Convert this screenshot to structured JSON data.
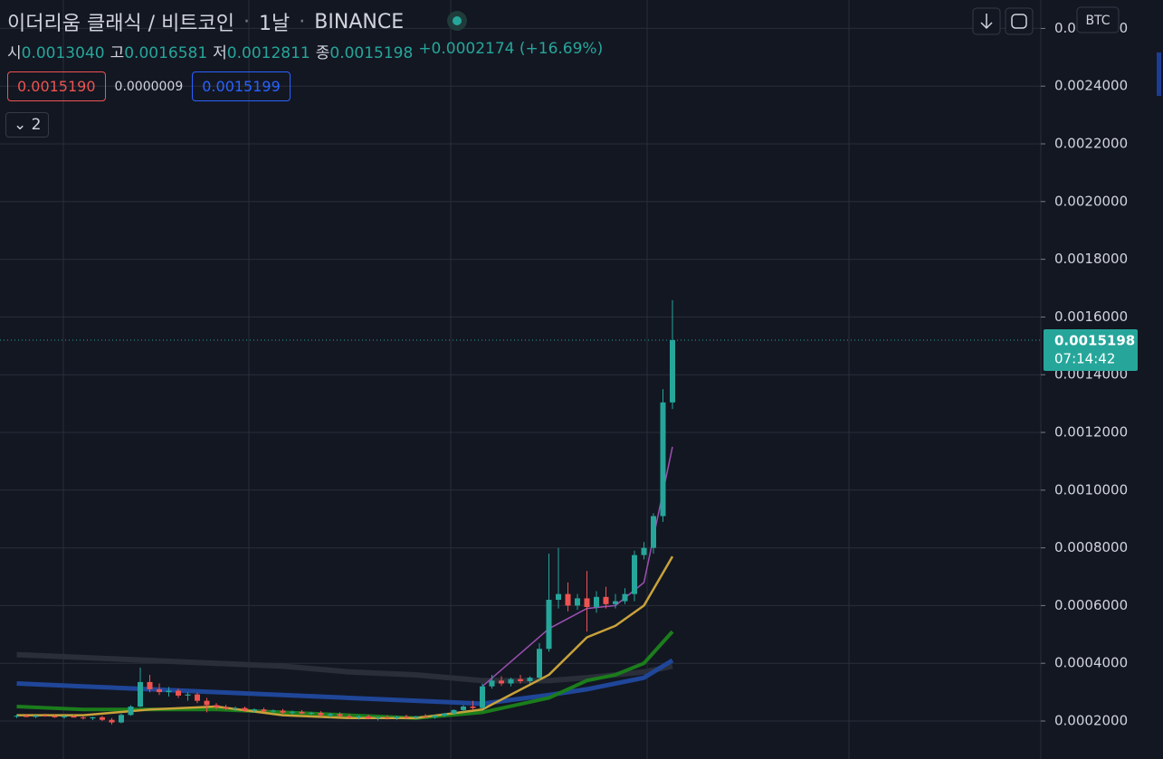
{
  "chart_data": {
    "type": "candlestick",
    "title": "이더리움 클래식 / 비트코인",
    "interval": "1날",
    "exchange": "BINANCE",
    "currency": "BTC",
    "ohlc_legend": [
      {
        "label": "시",
        "value": "0.0013040"
      },
      {
        "label": "고",
        "value": "0.0016581"
      },
      {
        "label": "저",
        "value": "0.0012811"
      },
      {
        "label": "종",
        "value": "0.0015198"
      }
    ],
    "change": "+0.0002174 (+16.69%)",
    "quote_boxes": [
      {
        "text": "0.0015190",
        "color": "#ef5350"
      },
      {
        "text": "0.0000009",
        "color": "#d1d4dc"
      },
      {
        "text": "0.0015199",
        "color": "#2962ff"
      }
    ],
    "collapsed_count": "2",
    "countdown": "07:14:42",
    "up_color": "#26a69a",
    "down_color": "#ef5350",
    "open": [
      0.000215,
      0.000218,
      0.000214,
      0.000219,
      0.000216,
      0.000213,
      0.000217,
      0.000212,
      0.000209,
      0.000213,
      0.000204,
      0.000195,
      0.000221,
      0.00025,
      0.000335,
      0.00031,
      0.0003,
      0.000305,
      0.000288,
      0.000292,
      0.00027,
      0.000255,
      0.000248,
      0.000242,
      0.000245,
      0.000236,
      0.00024,
      0.000233,
      0.000236,
      0.000229,
      0.000232,
      0.000226,
      0.000228,
      0.00022,
      0.000224,
      0.000217,
      0.000212,
      0.000216,
      0.000209,
      0.000213,
      0.00021,
      0.000215,
      0.000211,
      0.000216,
      0.000213,
      0.000219,
      0.000226,
      0.000238,
      0.00025,
      0.000245,
      0.00032,
      0.00034,
      0.00033,
      0.000345,
      0.000338,
      0.00035,
      0.00045,
      0.00062,
      0.00064,
      0.0006,
      0.000625,
      0.000595,
      0.00063,
      0.000605,
      0.000615,
      0.00064,
      0.000775,
      0.0008,
      0.00091,
      0.001304
    ],
    "high": [
      0.000222,
      0.000224,
      0.00022,
      0.000226,
      0.000221,
      0.000219,
      0.000223,
      0.000218,
      0.000215,
      0.000218,
      0.00021,
      0.000225,
      0.000255,
      0.000385,
      0.00036,
      0.00033,
      0.000318,
      0.000312,
      0.0003,
      0.000298,
      0.00028,
      0.000262,
      0.000256,
      0.00025,
      0.00025,
      0.000244,
      0.000246,
      0.00024,
      0.000242,
      0.000236,
      0.000238,
      0.000232,
      0.000234,
      0.000228,
      0.00023,
      0.000224,
      0.00022,
      0.000222,
      0.000216,
      0.00022,
      0.000218,
      0.000222,
      0.000218,
      0.000224,
      0.00022,
      0.000228,
      0.00024,
      0.000255,
      0.00027,
      0.00033,
      0.00036,
      0.000355,
      0.00035,
      0.00036,
      0.000355,
      0.00047,
      0.00078,
      0.0008,
      0.00068,
      0.00064,
      0.00072,
      0.00065,
      0.000665,
      0.00064,
      0.00066,
      0.00079,
      0.00082,
      0.00092,
      0.00135,
      0.0016581
    ],
    "low": [
      0.00021,
      0.000213,
      0.00021,
      0.000215,
      0.000211,
      0.000208,
      0.000212,
      0.000205,
      0.000203,
      0.0002,
      0.000188,
      0.000192,
      0.000218,
      0.000248,
      0.0003,
      0.00029,
      0.000285,
      0.00028,
      0.00027,
      0.000262,
      0.00023,
      0.00024,
      0.000238,
      0.000234,
      0.000232,
      0.000228,
      0.00023,
      0.000226,
      0.000225,
      0.000222,
      0.000224,
      0.000218,
      0.000216,
      0.000212,
      0.000214,
      0.000208,
      0.000205,
      0.000206,
      0.000202,
      0.000205,
      0.000204,
      0.000207,
      0.000205,
      0.00021,
      0.000208,
      0.000214,
      0.000222,
      0.000232,
      0.00024,
      0.000244,
      0.000312,
      0.000322,
      0.00032,
      0.00033,
      0.00033,
      0.00034,
      0.00044,
      0.00059,
      0.00058,
      0.000585,
      0.00051,
      0.000575,
      0.00059,
      0.00059,
      0.000605,
      0.000615,
      0.00076,
      0.00078,
      0.00089,
      0.0012811
    ],
    "close": [
      0.000218,
      0.000214,
      0.000219,
      0.000216,
      0.000213,
      0.000217,
      0.000212,
      0.000209,
      0.000213,
      0.000204,
      0.000195,
      0.000221,
      0.00025,
      0.000335,
      0.00031,
      0.0003,
      0.000305,
      0.000288,
      0.000292,
      0.00027,
      0.000255,
      0.000248,
      0.000242,
      0.000245,
      0.000236,
      0.00024,
      0.000233,
      0.000236,
      0.000229,
      0.000232,
      0.000226,
      0.000228,
      0.00022,
      0.000224,
      0.000217,
      0.000212,
      0.000216,
      0.000209,
      0.000213,
      0.00021,
      0.000215,
      0.000211,
      0.000216,
      0.000213,
      0.000219,
      0.000226,
      0.000238,
      0.00025,
      0.000245,
      0.00032,
      0.00034,
      0.00033,
      0.000345,
      0.000338,
      0.00035,
      0.00045,
      0.00062,
      0.00064,
      0.0006,
      0.000625,
      0.000595,
      0.00063,
      0.000605,
      0.000615,
      0.00064,
      0.000775,
      0.0008,
      0.00091,
      0.001304,
      0.0015198
    ],
    "overlays": [
      {
        "color": "#2a2e39",
        "width": 6,
        "x": [
          0,
          7,
          14,
          21,
          28,
          35,
          42,
          49,
          56,
          60,
          63,
          66,
          69
        ],
        "values": [
          0.00043,
          0.00042,
          0.00041,
          0.0004,
          0.00039,
          0.00037,
          0.00036,
          0.00034,
          0.00034,
          0.00035,
          0.00036,
          0.00037,
          0.00039
        ]
      },
      {
        "color": "#1f4698",
        "width": 5,
        "x": [
          0,
          7,
          14,
          21,
          28,
          35,
          42,
          49,
          56,
          60,
          63,
          66,
          69
        ],
        "values": [
          0.00033,
          0.00032,
          0.00031,
          0.0003,
          0.00029,
          0.00028,
          0.00027,
          0.00026,
          0.00029,
          0.00031,
          0.00033,
          0.00035,
          0.00041
        ]
      },
      {
        "color": "#1b7d1b",
        "width": 4,
        "x": [
          0,
          7,
          14,
          21,
          28,
          35,
          42,
          49,
          56,
          60,
          63,
          66,
          69
        ],
        "values": [
          0.00025,
          0.00024,
          0.00024,
          0.00024,
          0.00023,
          0.00022,
          0.00021,
          0.00023,
          0.00028,
          0.00034,
          0.00036,
          0.0004,
          0.00051
        ]
      },
      {
        "color": "#c9a23a",
        "width": 2.5,
        "x": [
          0,
          7,
          14,
          21,
          28,
          35,
          42,
          49,
          56,
          60,
          63,
          66,
          69
        ],
        "values": [
          0.00022,
          0.00022,
          0.00024,
          0.00025,
          0.00022,
          0.00021,
          0.00021,
          0.00024,
          0.00036,
          0.00049,
          0.00053,
          0.0006,
          0.00077
        ]
      },
      {
        "color": "#9c4fb0",
        "width": 1.5,
        "x": [
          0,
          7,
          14,
          21,
          28,
          35,
          42,
          49,
          56,
          60,
          63,
          66,
          69
        ],
        "values": [
          null,
          null,
          null,
          null,
          null,
          null,
          null,
          0.00032,
          0.00052,
          0.00059,
          0.0006,
          0.00068,
          0.00115
        ]
      }
    ],
    "ylim": [
      6.83e-05,
      0.0026985
    ],
    "yticks": [
      {
        "value": 0.0002,
        "label": "0.0002000"
      },
      {
        "value": 0.0004,
        "label": "0.0004000"
      },
      {
        "value": 0.0006,
        "label": "0.0006000"
      },
      {
        "value": 0.0008,
        "label": "0.0008000"
      },
      {
        "value": 0.001,
        "label": "0.0010000"
      },
      {
        "value": 0.0012,
        "label": "0.0012000"
      },
      {
        "value": 0.0014,
        "label": "0.0014000"
      },
      {
        "value": 0.0016,
        "label": "0.0016000"
      },
      {
        "value": 0.0018,
        "label": "0.0018000"
      },
      {
        "value": 0.002,
        "label": "0.0020000"
      },
      {
        "value": 0.0022,
        "label": "0.0022000"
      },
      {
        "value": 0.0024,
        "label": "0.0024000"
      },
      {
        "value": 0.0026,
        "label": "0.0026000"
      }
    ],
    "grid": true
  }
}
